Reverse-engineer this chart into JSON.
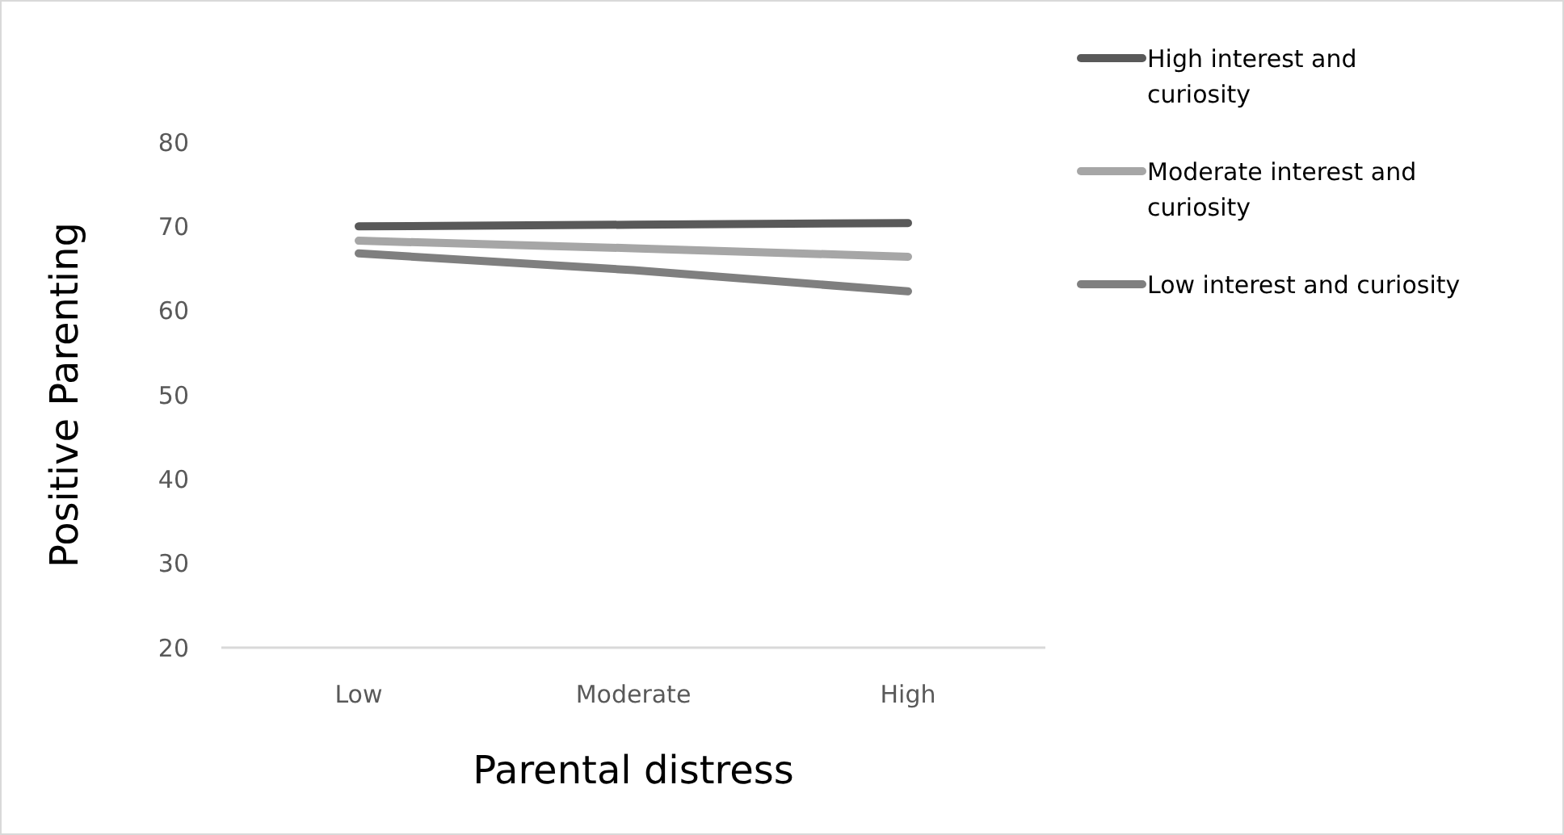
{
  "chart_data": {
    "type": "line",
    "xlabel": "Parental distress",
    "ylabel": "Positive Parenting",
    "categories": [
      "Low",
      "Moderate",
      "High"
    ],
    "series": [
      {
        "name": "High interest and curiosity",
        "color": "#595959",
        "values": [
          70,
          70.2,
          70.4
        ]
      },
      {
        "name": "Moderate interest and curiosity",
        "color": "#a6a6a6",
        "values": [
          68.3,
          67.4,
          66.4
        ]
      },
      {
        "name": "Low interest and curiosity",
        "color": "#7f7f7f",
        "values": [
          66.8,
          64.8,
          62.3
        ]
      }
    ],
    "ylim": [
      20,
      80
    ],
    "yticks": [
      20,
      30,
      40,
      50,
      60,
      70,
      80
    ],
    "grid": false,
    "legend": "right",
    "marker": "none",
    "line_style": "solid"
  }
}
